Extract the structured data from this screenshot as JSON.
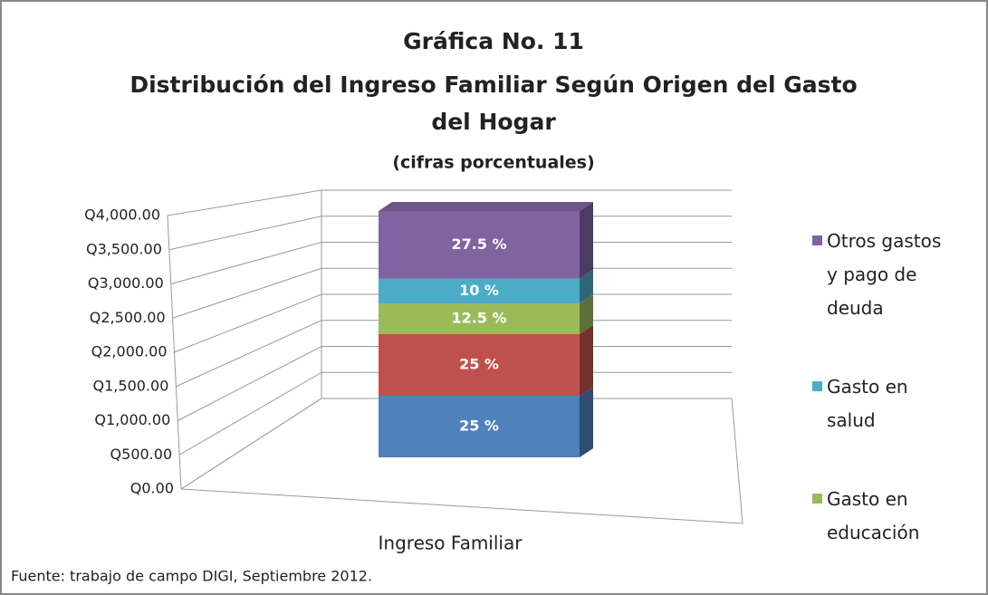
{
  "chart_data": {
    "type": "bar3d_stacked",
    "title": [
      "Gráfica No. 11",
      "Distribución del Ingreso Familiar Según Origen del Gasto",
      "del Hogar"
    ],
    "subtitle": "(cifras porcentuales)",
    "categories": [
      "Ingreso Familiar"
    ],
    "series": [
      {
        "name": null,
        "color": "#4f81bd",
        "values": [
          1000
        ],
        "value_labels": [
          "25 %"
        ]
      },
      {
        "name": null,
        "color": "#c0504d",
        "values": [
          1000
        ],
        "value_labels": [
          "25 %"
        ]
      },
      {
        "name": "Gasto en educación",
        "color": "#9bbb59",
        "values": [
          500
        ],
        "value_labels": [
          "12.5 %"
        ]
      },
      {
        "name": "Gasto en salud",
        "color": "#4bacc6",
        "values": [
          400
        ],
        "value_labels": [
          "10 %"
        ]
      },
      {
        "name": "Otros gastos y pago de deuda",
        "color": "#8064a2",
        "values": [
          1100
        ],
        "value_labels": [
          "27.5 %"
        ]
      }
    ],
    "ylim": [
      0,
      4000
    ],
    "yticks": [
      {
        "value": 0,
        "label": "Q0.00"
      },
      {
        "value": 500,
        "label": "Q500.00"
      },
      {
        "value": 1000,
        "label": "Q1,000.00"
      },
      {
        "value": 1500,
        "label": "Q1,500.00"
      },
      {
        "value": 2000,
        "label": "Q2,000.00"
      },
      {
        "value": 2500,
        "label": "Q2,500.00"
      },
      {
        "value": 3000,
        "label": "Q3,000.00"
      },
      {
        "value": 3500,
        "label": "Q3,500.00"
      },
      {
        "value": 4000,
        "label": "Q4,000.00"
      }
    ],
    "grid": true,
    "legend": "right",
    "source": "Fuente: trabajo de campo DIGI, Septiembre 2012."
  }
}
